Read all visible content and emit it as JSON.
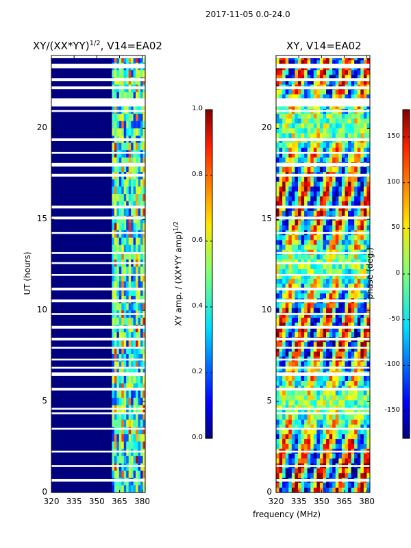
{
  "figure": {
    "suptitle": "2017-11-05 0.0-24.0",
    "xlabel": "frequency (MHz)"
  },
  "colors": {
    "jet_low": "#00007f",
    "jet_mid": "#7fff7f",
    "jet_high": "#7f0000",
    "gap": "#ffffff"
  },
  "chart_data": [
    {
      "type": "heatmap",
      "title": "XY/(XX*YY)",
      "title_exponent": "1/2",
      "title_suffix": ", V14=EA02",
      "xlabel": "",
      "ylabel": "UT (hours)",
      "xlim": [
        320,
        382
      ],
      "ylim": [
        0,
        24
      ],
      "xticks": [
        320,
        335,
        350,
        365,
        380
      ],
      "yticks": [
        0,
        5,
        10,
        15,
        20
      ],
      "colorbar": {
        "label": "XY amp. / (XX*YY amp)",
        "label_exponent": "1/2",
        "range": [
          0.0,
          1.0
        ],
        "ticks": [
          "0.0",
          "0.2",
          "0.4",
          "0.6",
          "0.8",
          "1.0"
        ]
      },
      "description_values": {
        "background_level": 0.0,
        "band_channels_mhz": [
          360,
          382
        ],
        "band_level_range": [
          0.2,
          0.9
        ]
      }
    },
    {
      "type": "heatmap",
      "title": "XY, V14=EA02",
      "xlabel": "frequency (MHz)",
      "ylabel": "",
      "xlim": [
        320,
        382
      ],
      "ylim": [
        0,
        24
      ],
      "xticks": [
        320,
        335,
        350,
        365,
        380
      ],
      "yticks": [
        0,
        5,
        10,
        15,
        20
      ],
      "colorbar": {
        "label": "phase (deg.)",
        "range": [
          -180,
          180
        ],
        "ticks": [
          "-150",
          "-100",
          "-50",
          "0",
          "50",
          "100",
          "150"
        ]
      }
    }
  ],
  "gaps_hours": [
    [
      23.3,
      23.55
    ],
    [
      22.6,
      22.75
    ],
    [
      22.15,
      22.3
    ],
    [
      21.2,
      21.65
    ],
    [
      20.9,
      21.0
    ],
    [
      19.3,
      19.45
    ],
    [
      18.6,
      18.7
    ],
    [
      17.9,
      18.1
    ],
    [
      17.35,
      17.5
    ],
    [
      15.6,
      15.75
    ],
    [
      15.0,
      15.15
    ],
    [
      14.2,
      14.3
    ],
    [
      13.1,
      13.2
    ],
    [
      12.55,
      12.65
    ],
    [
      11.9,
      12.0
    ],
    [
      11.1,
      11.25
    ],
    [
      10.45,
      10.6
    ],
    [
      9.75,
      9.85
    ],
    [
      9.0,
      9.15
    ],
    [
      8.35,
      8.5
    ],
    [
      7.9,
      8.0
    ],
    [
      7.25,
      7.35
    ],
    [
      6.8,
      6.9
    ],
    [
      6.4,
      6.6
    ],
    [
      5.6,
      5.75
    ],
    [
      4.55,
      4.65
    ],
    [
      4.3,
      4.4
    ],
    [
      3.45,
      3.55
    ],
    [
      2.2,
      2.3
    ],
    [
      1.4,
      1.5
    ],
    [
      0.6,
      0.75
    ],
    [
      23.85,
      24.0
    ]
  ]
}
